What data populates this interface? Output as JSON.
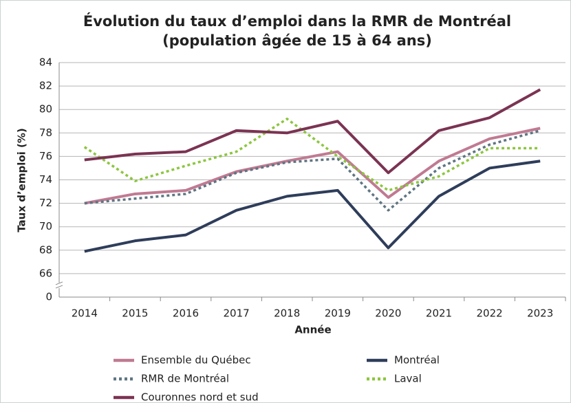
{
  "chart_data": {
    "type": "line",
    "title": [
      "Évolution du taux d’emploi dans la RMR de Montréal",
      "(population âgée de 15 à 64 ans)"
    ],
    "x_label": "Année",
    "y_label": "Taux d’emploi (%)",
    "categories": [
      "2014",
      "2015",
      "2016",
      "2017",
      "2018",
      "2019",
      "2020",
      "2021",
      "2022",
      "2023"
    ],
    "ylim": [
      0,
      84
    ],
    "yticks": [
      0,
      66,
      68,
      70,
      72,
      74,
      76,
      78,
      80,
      82,
      84
    ],
    "y_axis_break": true,
    "grid": true,
    "series": [
      {
        "name": "Ensemble du Québec",
        "color": "#c07a92",
        "dashed": false,
        "values": [
          72.0,
          72.8,
          73.1,
          74.7,
          75.6,
          76.4,
          72.5,
          75.6,
          77.5,
          78.4
        ]
      },
      {
        "name": "Montréal",
        "color": "#2e3d5a",
        "dashed": false,
        "values": [
          67.9,
          68.8,
          69.3,
          71.4,
          72.6,
          73.1,
          68.2,
          72.6,
          75.0,
          75.6
        ]
      },
      {
        "name": "RMR de Montréal",
        "color": "#5f7582",
        "dashed": true,
        "values": [
          72.0,
          72.4,
          72.8,
          74.6,
          75.5,
          75.8,
          71.4,
          75.0,
          77.0,
          78.2
        ]
      },
      {
        "name": "Laval",
        "color": "#8cc63f",
        "dashed": true,
        "values": [
          76.8,
          73.9,
          75.2,
          76.4,
          79.2,
          76.0,
          73.1,
          74.3,
          76.7,
          76.7
        ]
      },
      {
        "name": "Couronnes nord et sud",
        "color": "#7b3352",
        "dashed": false,
        "values": [
          75.7,
          76.2,
          76.4,
          78.2,
          78.0,
          79.0,
          74.6,
          78.2,
          79.3,
          81.7
        ]
      }
    ]
  }
}
